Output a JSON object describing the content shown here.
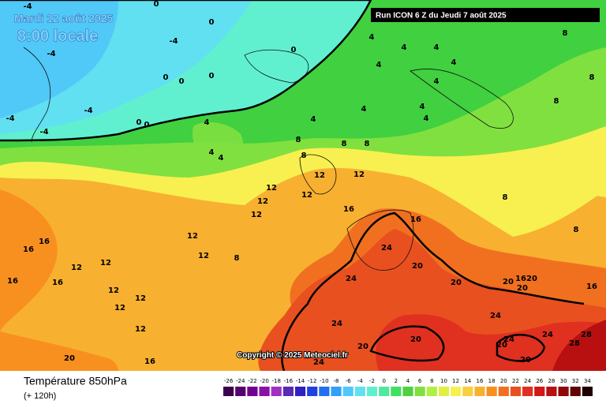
{
  "header": {
    "date": "Mardi 12 août 2025",
    "time": "8:00 locale",
    "run": "Run ICON 6 Z du Jeudi 7 août 2025"
  },
  "footer": {
    "title": "Température 850hPa",
    "lead": "(+ 120h)",
    "copyright": "Copyright © 2025 Meteociel.fr"
  },
  "colorbar": {
    "ticks": [
      -26,
      -24,
      -22,
      -20,
      -18,
      -16,
      -14,
      -12,
      -10,
      -8,
      -6,
      -4,
      -2,
      0,
      2,
      4,
      6,
      8,
      10,
      12,
      14,
      16,
      18,
      20,
      22,
      24,
      26,
      28,
      30,
      32,
      34
    ],
    "colors": [
      "#3c0050",
      "#55006e",
      "#700090",
      "#8a10a8",
      "#a030c0",
      "#5a2ab0",
      "#3020c0",
      "#2040e0",
      "#2070f0",
      "#30a0f8",
      "#50c8f8",
      "#60e0f0",
      "#60f0d0",
      "#50e8a0",
      "#40e060",
      "#50d040",
      "#80e040",
      "#b0f040",
      "#e0f040",
      "#f8f050",
      "#f8d040",
      "#f8b030",
      "#f89020",
      "#f07020",
      "#e85020",
      "#e03020",
      "#d01818",
      "#b81010",
      "#900808",
      "#600404",
      "#200000"
    ]
  },
  "contour_labels": [
    -4,
    0,
    0,
    -4,
    -4,
    0,
    0,
    0,
    0,
    -4,
    -4,
    -4,
    0,
    0,
    4,
    4,
    4,
    4,
    4,
    4,
    4,
    4,
    8,
    8,
    8,
    8,
    8,
    8,
    8,
    4,
    4,
    12,
    12,
    12,
    12,
    12,
    12,
    16,
    16,
    16,
    16,
    16,
    12,
    12,
    8,
    12,
    12,
    16,
    12,
    12,
    12,
    12,
    24,
    20,
    24,
    20,
    20,
    16,
    20,
    20,
    16,
    24,
    24,
    20,
    20,
    24,
    20,
    24,
    28,
    28,
    20,
    24,
    16,
    20,
    4,
    4,
    4,
    8,
    8
  ]
}
